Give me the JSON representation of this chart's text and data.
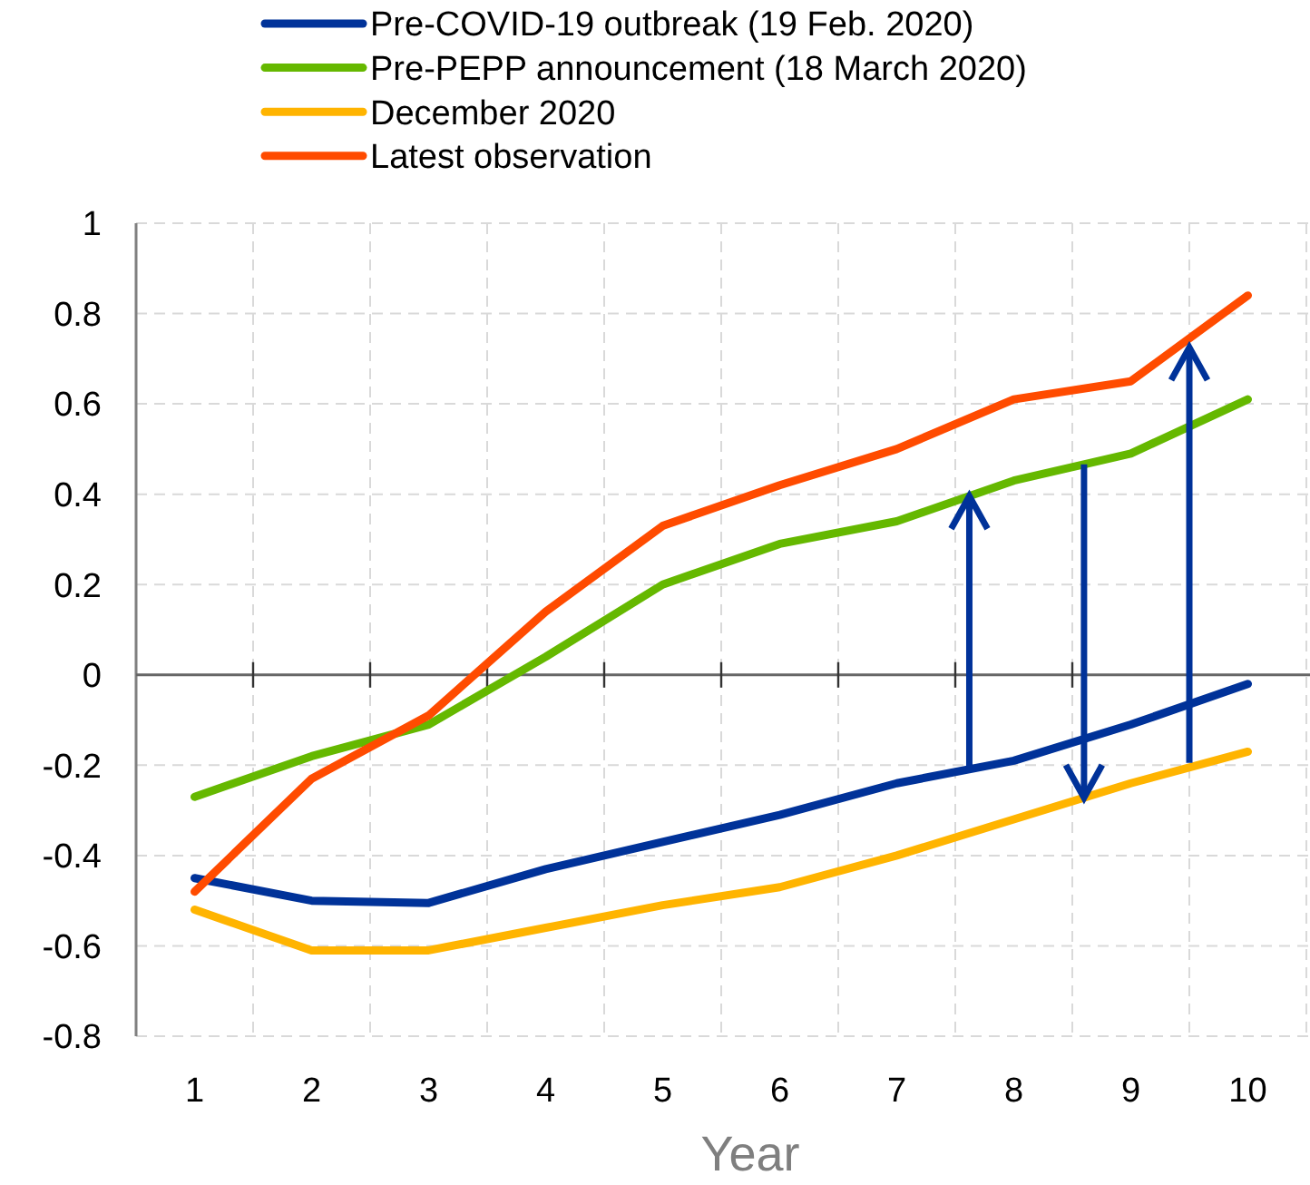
{
  "chart_data": {
    "type": "line",
    "xlabel": "Year",
    "categories": [
      "1",
      "2",
      "3",
      "4",
      "5",
      "6",
      "7",
      "8",
      "9",
      "10"
    ],
    "ylim": [
      -0.8,
      1
    ],
    "yticks": [
      -0.8,
      -0.6,
      -0.4,
      -0.2,
      0,
      0.2,
      0.4,
      0.6,
      0.8,
      1
    ],
    "grid": true,
    "legend": "top",
    "line_style": "solid",
    "marker": "none",
    "series": [
      {
        "name": "Pre-COVID-19 outbreak (19 Feb. 2020)",
        "color": "#003299",
        "values": [
          -0.45,
          -0.5,
          -0.505,
          -0.43,
          -0.37,
          -0.31,
          -0.24,
          -0.19,
          -0.11,
          -0.02
        ]
      },
      {
        "name": "Pre-PEPP announcement (18 March 2020)",
        "color": "#65b800",
        "values": [
          -0.27,
          -0.18,
          -0.11,
          0.04,
          0.2,
          0.29,
          0.34,
          0.43,
          0.49,
          0.61
        ]
      },
      {
        "name": "December 2020",
        "color": "#ffb400",
        "values": [
          -0.52,
          -0.61,
          -0.61,
          -0.56,
          -0.51,
          -0.47,
          -0.4,
          -0.32,
          -0.24,
          -0.17
        ]
      },
      {
        "name": "Latest observation",
        "color": "#ff4b00",
        "values": [
          -0.48,
          -0.23,
          -0.09,
          0.14,
          0.33,
          0.42,
          0.5,
          0.61,
          0.65,
          0.84
        ]
      }
    ]
  }
}
